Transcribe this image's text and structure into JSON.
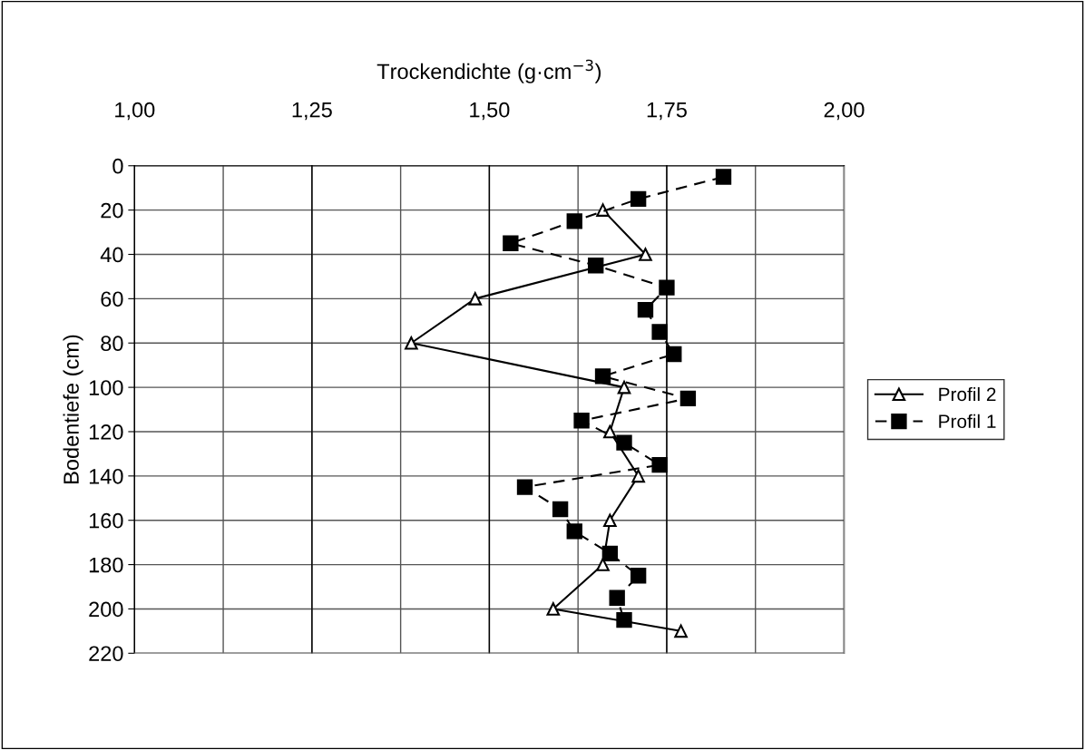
{
  "chart_data": {
    "type": "line",
    "xlabel": "Trockendichte (g·cm$^{−3}$)",
    "ylabel": "Bodentiefe (cm)",
    "xlim": [
      1.0,
      2.0
    ],
    "xticks": [
      {
        "value": 1.0,
        "label": "1,00"
      },
      {
        "value": 1.125,
        "label": null
      },
      {
        "value": 1.25,
        "label": "1,25"
      },
      {
        "value": 1.375,
        "label": null
      },
      {
        "value": 1.5,
        "label": "1,50"
      },
      {
        "value": 1.625,
        "label": null
      },
      {
        "value": 1.75,
        "label": "1,75"
      },
      {
        "value": 1.875,
        "label": null
      },
      {
        "value": 2.0,
        "label": "2,00"
      }
    ],
    "ylim": [
      220,
      0
    ],
    "yticks": [
      0,
      20,
      40,
      60,
      80,
      100,
      120,
      140,
      160,
      180,
      200,
      220
    ],
    "grid": true,
    "legend": "right",
    "series": [
      {
        "name": "Profil 2",
        "color": "#000000",
        "marker": "triangle",
        "line_style": "solid",
        "x": [
          1.66,
          1.72,
          1.48,
          1.39,
          1.69,
          1.67,
          1.71,
          1.67,
          1.66,
          1.59,
          1.77
        ],
        "values": [
          20,
          40,
          60,
          80,
          100,
          120,
          140,
          160,
          180,
          200,
          210
        ]
      },
      {
        "name": "Profil 1",
        "color": "#000000",
        "marker": "square",
        "line_style": "dashed",
        "x": [
          1.83,
          1.71,
          1.62,
          1.53,
          1.65,
          1.75,
          1.72,
          1.74,
          1.76,
          1.66,
          1.78,
          1.63,
          1.69,
          1.74,
          1.55,
          1.6,
          1.62,
          1.67,
          1.71,
          1.68,
          1.69
        ],
        "values": [
          5,
          15,
          25,
          35,
          45,
          55,
          65,
          75,
          85,
          95,
          105,
          115,
          125,
          135,
          145,
          155,
          165,
          175,
          185,
          195,
          205
        ]
      }
    ]
  }
}
